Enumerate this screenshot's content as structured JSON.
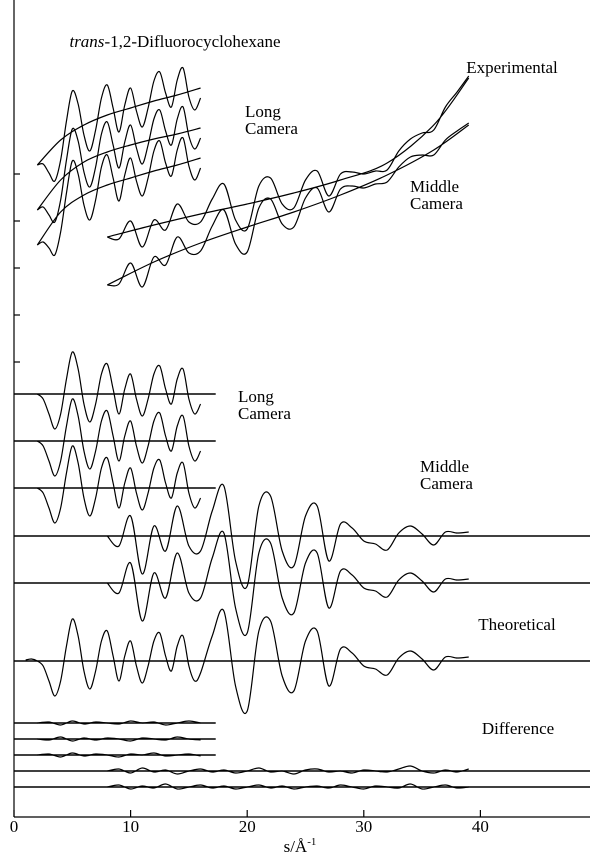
{
  "chart_data": {
    "type": "line",
    "title": "trans-1,2-Difluorocyclohexane",
    "xlabel": "s/Å",
    "xlabel_sup": "-1",
    "xlim": [
      0,
      49.4
    ],
    "ylim": [
      0,
      81.7
    ],
    "xticks": [
      0,
      10,
      20,
      30,
      40
    ],
    "yticks": [
      64.3,
      59.6,
      54.9,
      50.2,
      45.5
    ],
    "ytick_labels": false,
    "color": "#000000",
    "annotations": [
      "Experimental",
      "Long Camera",
      "Middle Camera",
      "Long Camera",
      "Middle Camera",
      "Theoretical",
      "Difference"
    ],
    "reference_lines": [
      {
        "y": 42.3,
        "x": [
          0,
          17.3
        ]
      },
      {
        "y": 37.6,
        "x": [
          0,
          17.3
        ]
      },
      {
        "y": 32.9,
        "x": [
          0,
          17.3
        ]
      },
      {
        "y": 28.1,
        "x": [
          0,
          49.4
        ]
      },
      {
        "y": 23.4,
        "x": [
          0,
          49.4
        ]
      },
      {
        "y": 15.6,
        "x": [
          0,
          49.4
        ]
      },
      {
        "y": 9.4,
        "x": [
          0,
          17.3
        ]
      },
      {
        "y": 7.8,
        "x": [
          0,
          17.3
        ]
      },
      {
        "y": 6.2,
        "x": [
          0,
          17.3
        ]
      },
      {
        "y": 4.6,
        "x": [
          0,
          49.4
        ]
      },
      {
        "y": 3.0,
        "x": [
          0,
          49.4
        ]
      }
    ],
    "series": [
      {
        "x": [
          2,
          4,
          6,
          8,
          10,
          12,
          14,
          16
        ],
        "values": [
          65.2,
          67.7,
          69.2,
          70.2,
          70.9,
          71.6,
          72.2,
          72.9
        ]
      },
      {
        "x": [
          2,
          4,
          6,
          8,
          10,
          12,
          14,
          16
        ],
        "values": [
          60.7,
          63.7,
          65.5,
          66.5,
          67.2,
          67.8,
          68.3,
          68.9
        ]
      },
      {
        "x": [
          2,
          4,
          6,
          8,
          10,
          12,
          14,
          16
        ],
        "values": [
          57.2,
          60.5,
          62.2,
          63.2,
          63.9,
          64.6,
          65.2,
          65.9
        ]
      },
      {
        "x": [
          8,
          12,
          16,
          20,
          24,
          28,
          32,
          36,
          39
        ],
        "values": [
          58.0,
          59.2,
          60.3,
          61.3,
          62.4,
          63.7,
          65.4,
          69.2,
          73.9
        ]
      },
      {
        "x": [
          8,
          12,
          16,
          20,
          24,
          28,
          32,
          36,
          39
        ],
        "values": [
          53.2,
          55.5,
          57.4,
          59.0,
          60.5,
          62.2,
          64.2,
          66.7,
          69.2
        ]
      },
      {
        "x": [
          2,
          2.5,
          3,
          3.5,
          4,
          4.5,
          5,
          5.5,
          6,
          6.5,
          7,
          7.5,
          8,
          8.5,
          9,
          9.5,
          10,
          10.5,
          11,
          11.5,
          12,
          12.5,
          13,
          13.5,
          14,
          14.5,
          15,
          15.5,
          16
        ],
        "values": [
          65.2,
          65.3,
          64.4,
          63.6,
          65.7,
          69.6,
          72.6,
          71.3,
          68.2,
          66.6,
          68.7,
          71.9,
          73.2,
          70.9,
          68.5,
          71.2,
          72.9,
          70.6,
          69.0,
          70.9,
          73.6,
          74.5,
          72.4,
          71.0,
          73.7,
          74.9,
          72.0,
          70.7,
          71.9
        ]
      },
      {
        "x": [
          2,
          2.5,
          3,
          3.5,
          4,
          4.5,
          5,
          5.5,
          6,
          6.5,
          7,
          7.5,
          8,
          8.5,
          9,
          9.5,
          10,
          10.5,
          11,
          11.5,
          12,
          12.5,
          13,
          13.5,
          14,
          14.5,
          15,
          15.5,
          16
        ],
        "values": [
          60.7,
          61.0,
          60.2,
          59.5,
          61.7,
          65.7,
          68.8,
          67.6,
          64.5,
          63.0,
          65.0,
          68.3,
          69.5,
          67.2,
          64.9,
          67.5,
          69.2,
          66.9,
          65.3,
          67.2,
          69.8,
          70.7,
          68.6,
          67.2,
          69.8,
          71.0,
          68.1,
          66.8,
          67.9
        ]
      },
      {
        "x": [
          2,
          2.5,
          3,
          3.5,
          4,
          4.5,
          5,
          5.5,
          6,
          6.5,
          7,
          7.5,
          8,
          8.5,
          9,
          9.5,
          10,
          10.5,
          11,
          11.5,
          12,
          12.5,
          13,
          13.5,
          14,
          14.5,
          15,
          15.5,
          16
        ],
        "values": [
          57.2,
          57.5,
          56.9,
          56.2,
          58.5,
          62.4,
          65.6,
          64.3,
          61.2,
          59.7,
          61.7,
          65.0,
          66.2,
          63.9,
          61.6,
          64.2,
          65.9,
          63.6,
          62.1,
          63.9,
          66.6,
          67.6,
          65.4,
          64.1,
          66.7,
          67.9,
          65.1,
          63.7,
          64.9
        ]
      },
      {
        "x": [
          8,
          9,
          10,
          11,
          12,
          13,
          14,
          15,
          16,
          17,
          18,
          19,
          20,
          21,
          22,
          23,
          24,
          25,
          26,
          27,
          28,
          29,
          30,
          31,
          32,
          33,
          34,
          35,
          36,
          37,
          38,
          39
        ],
        "values": [
          58.0,
          57.8,
          59.6,
          57.0,
          59.7,
          58.7,
          61.3,
          59.5,
          59.5,
          61.8,
          63.3,
          59.7,
          58.8,
          63.1,
          63.9,
          61.3,
          60.9,
          63.7,
          64.6,
          62.1,
          64.3,
          64.5,
          64.3,
          64.6,
          64.7,
          66.6,
          67.8,
          68.4,
          68.7,
          71.0,
          72.5,
          74.1
        ]
      },
      {
        "x": [
          8,
          9,
          10,
          11,
          12,
          13,
          14,
          15,
          16,
          17,
          18,
          19,
          20,
          21,
          22,
          23,
          24,
          25,
          26,
          27,
          28,
          29,
          30,
          31,
          32,
          33,
          34,
          35,
          36,
          37,
          38,
          39
        ],
        "values": [
          53.2,
          53.3,
          55.4,
          53.0,
          56.0,
          55.2,
          58.0,
          56.4,
          56.6,
          59.1,
          60.7,
          57.3,
          56.5,
          60.9,
          61.8,
          59.3,
          59.0,
          61.9,
          62.9,
          60.5,
          62.8,
          63.1,
          62.9,
          63.3,
          63.5,
          65.0,
          66.0,
          66.2,
          66.2,
          67.7,
          68.6,
          69.4
        ]
      },
      {
        "x": [
          2,
          2.5,
          3,
          3.5,
          4,
          4.5,
          5,
          5.5,
          6,
          6.5,
          7,
          7.5,
          8,
          8.5,
          9,
          9.5,
          10,
          10.5,
          11,
          11.5,
          12,
          12.5,
          13,
          13.5,
          14,
          14.5,
          15,
          15.5,
          16
        ],
        "values": [
          42.3,
          41.8,
          40.3,
          38.8,
          40.3,
          43.8,
          46.5,
          44.8,
          41.3,
          39.5,
          41.3,
          44.3,
          45.3,
          42.8,
          40.3,
          42.8,
          44.3,
          41.8,
          40.1,
          41.8,
          44.3,
          45.1,
          42.8,
          41.3,
          43.8,
          44.8,
          41.8,
          40.3,
          41.3
        ]
      },
      {
        "x": [
          2,
          2.5,
          3,
          3.5,
          4,
          4.5,
          5,
          5.5,
          6,
          6.5,
          7,
          7.5,
          8,
          8.5,
          9,
          9.5,
          10,
          10.5,
          11,
          11.5,
          12,
          12.5,
          13,
          13.5,
          14,
          14.5,
          15,
          15.5,
          16
        ],
        "values": [
          37.6,
          37.1,
          35.6,
          34.1,
          35.6,
          39.1,
          41.8,
          40.1,
          36.6,
          34.8,
          36.6,
          39.6,
          40.6,
          38.1,
          35.6,
          38.1,
          39.6,
          37.1,
          35.4,
          37.1,
          39.6,
          40.4,
          38.1,
          36.6,
          39.1,
          40.1,
          37.1,
          35.6,
          36.6
        ]
      },
      {
        "x": [
          2,
          2.5,
          3,
          3.5,
          4,
          4.5,
          5,
          5.5,
          6,
          6.5,
          7,
          7.5,
          8,
          8.5,
          9,
          9.5,
          10,
          10.5,
          11,
          11.5,
          12,
          12.5,
          13,
          13.5,
          14,
          14.5,
          15,
          15.5,
          16
        ],
        "values": [
          32.9,
          32.4,
          30.9,
          29.4,
          30.9,
          34.4,
          37.1,
          35.4,
          31.9,
          30.1,
          31.9,
          34.9,
          35.9,
          33.4,
          30.9,
          33.4,
          34.9,
          32.4,
          30.7,
          32.4,
          34.9,
          35.7,
          33.4,
          31.9,
          34.4,
          35.4,
          32.4,
          30.9,
          31.9
        ]
      },
      {
        "x": [
          8,
          9,
          10,
          11,
          12,
          13,
          14,
          15,
          16,
          17,
          18,
          19,
          20,
          21,
          22,
          23,
          24,
          25,
          26,
          27,
          28,
          29,
          30,
          31,
          32,
          33,
          34,
          35,
          36,
          37,
          38,
          39
        ],
        "values": [
          28.1,
          27.1,
          30.1,
          24.3,
          29.1,
          26.6,
          31.1,
          27.1,
          26.6,
          30.6,
          33.1,
          25.6,
          23.1,
          31.1,
          32.1,
          26.6,
          25.1,
          30.1,
          31.1,
          25.6,
          29.3,
          28.9,
          27.6,
          27.3,
          26.7,
          28.4,
          29.1,
          28.3,
          27.2,
          28.5,
          28.4,
          28.5
        ]
      },
      {
        "x": [
          8,
          9,
          10,
          11,
          12,
          13,
          14,
          15,
          16,
          17,
          18,
          19,
          20,
          21,
          22,
          23,
          24,
          25,
          26,
          27,
          28,
          29,
          30,
          31,
          32,
          33,
          34,
          35,
          36,
          37,
          38,
          39
        ],
        "values": [
          23.4,
          22.4,
          25.4,
          19.6,
          24.4,
          21.9,
          26.4,
          22.4,
          21.9,
          25.9,
          28.4,
          20.9,
          18.4,
          26.4,
          27.4,
          21.9,
          20.4,
          25.4,
          26.4,
          20.9,
          24.6,
          24.2,
          22.9,
          22.6,
          22.0,
          23.7,
          24.4,
          23.6,
          22.5,
          23.8,
          23.7,
          23.8
        ]
      },
      {
        "x": [
          1,
          1.5,
          2,
          2.5,
          3,
          3.5,
          4,
          4.5,
          5,
          5.5,
          6,
          6.5,
          7,
          7.5,
          8,
          8.5,
          9,
          9.5,
          10,
          10.5,
          11,
          11.5,
          12,
          12.5,
          13,
          13.5,
          14,
          14.5,
          15,
          15.5,
          16,
          17,
          18,
          19,
          20,
          21,
          22,
          23,
          24,
          25,
          26,
          27,
          28,
          29,
          30,
          31,
          32,
          33,
          34,
          35,
          36,
          37,
          38,
          39
        ],
        "values": [
          15.7,
          15.8,
          15.6,
          15.1,
          13.6,
          12.1,
          13.6,
          17.1,
          19.8,
          18.1,
          14.6,
          12.8,
          14.6,
          17.6,
          18.6,
          16.1,
          13.6,
          16.1,
          17.6,
          15.1,
          13.4,
          15.1,
          17.6,
          18.4,
          16.1,
          14.6,
          17.1,
          18.1,
          15.1,
          13.6,
          14.4,
          18.1,
          20.6,
          13.1,
          10.6,
          18.6,
          19.6,
          14.1,
          12.6,
          17.6,
          18.6,
          13.1,
          16.8,
          16.4,
          15.1,
          14.8,
          14.2,
          15.9,
          16.6,
          15.8,
          14.7,
          16.0,
          15.9,
          16.0
        ]
      },
      {
        "x": [
          2,
          3,
          4,
          5,
          6,
          7,
          8,
          9,
          10,
          11,
          12,
          13,
          14,
          15,
          16
        ],
        "values": [
          9.4,
          9.5,
          9.2,
          9.6,
          9.3,
          9.5,
          9.4,
          9.3,
          9.6,
          9.4,
          9.5,
          9.2,
          9.4,
          9.6,
          9.4
        ]
      },
      {
        "x": [
          2,
          3,
          4,
          5,
          6,
          7,
          8,
          9,
          10,
          11,
          12,
          13,
          14,
          15,
          16
        ],
        "values": [
          7.8,
          7.7,
          8.0,
          7.6,
          7.9,
          7.7,
          7.9,
          7.8,
          7.6,
          7.9,
          7.8,
          7.7,
          8.0,
          7.8,
          7.7
        ]
      },
      {
        "x": [
          2,
          3,
          4,
          5,
          6,
          7,
          8,
          9,
          10,
          11,
          12,
          13,
          14,
          15,
          16
        ],
        "values": [
          6.2,
          6.3,
          6.0,
          6.4,
          6.1,
          6.3,
          6.2,
          6.0,
          6.3,
          6.2,
          6.4,
          6.1,
          6.2,
          6.3,
          6.1
        ]
      },
      {
        "x": [
          8,
          9,
          10,
          11,
          12,
          13,
          14,
          15,
          16,
          17,
          18,
          19,
          20,
          21,
          22,
          23,
          24,
          25,
          26,
          27,
          28,
          29,
          30,
          31,
          32,
          33,
          34,
          35,
          36,
          37,
          38,
          39
        ],
        "values": [
          4.6,
          4.8,
          4.4,
          4.9,
          4.5,
          4.7,
          4.3,
          4.6,
          4.8,
          4.5,
          4.7,
          4.4,
          4.6,
          4.9,
          4.5,
          4.6,
          4.3,
          4.7,
          4.8,
          4.5,
          4.6,
          4.4,
          4.7,
          4.6,
          4.5,
          4.8,
          5.1,
          4.6,
          4.4,
          4.7,
          4.5,
          4.8
        ]
      },
      {
        "x": [
          8,
          9,
          10,
          11,
          12,
          13,
          14,
          15,
          16,
          17,
          18,
          19,
          20,
          21,
          22,
          23,
          24,
          25,
          26,
          27,
          28,
          29,
          30,
          31,
          32,
          33,
          34,
          35,
          36,
          37,
          38,
          39
        ],
        "values": [
          3.0,
          3.2,
          2.8,
          3.1,
          2.9,
          3.3,
          2.8,
          3.0,
          3.2,
          2.9,
          3.1,
          2.8,
          3.0,
          3.2,
          2.9,
          3.1,
          2.8,
          3.0,
          3.1,
          2.9,
          3.2,
          3.0,
          2.8,
          3.1,
          3.0,
          2.9,
          3.3,
          2.8,
          3.0,
          3.2,
          2.9,
          3.0
        ]
      }
    ]
  }
}
